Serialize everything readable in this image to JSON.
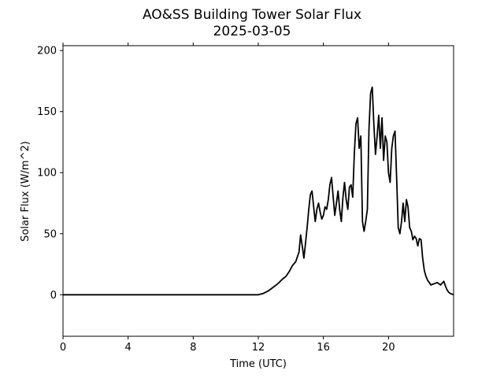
{
  "chart_data": {
    "type": "line",
    "title": "AO&SS Building Tower Solar Flux",
    "subtitle": "2025-03-05",
    "xlabel": "Time (UTC)",
    "ylabel": "Solar Flux (W/m^2)",
    "xlim": [
      0,
      24
    ],
    "ylim": [
      -34,
      204
    ],
    "x_ticks": [
      0,
      4,
      8,
      12,
      16,
      20
    ],
    "y_ticks": [
      0,
      50,
      100,
      150,
      200
    ],
    "grid": false,
    "series": [
      {
        "color": "#000000",
        "x": [
          0,
          1,
          2,
          3,
          4,
          5,
          6,
          7,
          8,
          9,
          10,
          11,
          12,
          12.3,
          12.6,
          12.9,
          13.2,
          13.5,
          13.7,
          13.9,
          14.1,
          14.3,
          14.5,
          14.6,
          14.7,
          14.8,
          14.9,
          15.0,
          15.1,
          15.2,
          15.3,
          15.4,
          15.5,
          15.6,
          15.7,
          15.8,
          15.9,
          16.0,
          16.1,
          16.2,
          16.3,
          16.4,
          16.5,
          16.6,
          16.7,
          16.8,
          16.9,
          17.0,
          17.1,
          17.2,
          17.3,
          17.4,
          17.5,
          17.6,
          17.7,
          17.8,
          17.9,
          18.0,
          18.1,
          18.2,
          18.3,
          18.4,
          18.5,
          18.6,
          18.7,
          18.8,
          18.9,
          19.0,
          19.1,
          19.2,
          19.3,
          19.4,
          19.5,
          19.6,
          19.7,
          19.8,
          19.9,
          20.0,
          20.1,
          20.2,
          20.3,
          20.4,
          20.5,
          20.6,
          20.7,
          20.8,
          20.9,
          21.0,
          21.1,
          21.2,
          21.3,
          21.4,
          21.5,
          21.6,
          21.7,
          21.8,
          21.9,
          22.0,
          22.1,
          22.2,
          22.3,
          22.4,
          22.5,
          22.6,
          22.8,
          23.0,
          23.2,
          23.4,
          23.5,
          23.6,
          23.7,
          23.8,
          24.0
        ],
        "values": [
          0,
          0,
          0,
          0,
          0,
          0,
          0,
          0,
          0,
          0,
          0,
          0,
          0,
          1,
          3,
          6,
          9,
          13,
          15,
          19,
          24,
          27,
          35,
          49,
          40,
          30,
          42,
          55,
          70,
          82,
          85,
          72,
          60,
          70,
          75,
          68,
          62,
          65,
          72,
          70,
          78,
          90,
          96,
          80,
          65,
          75,
          85,
          70,
          60,
          80,
          92,
          78,
          70,
          88,
          90,
          80,
          115,
          140,
          145,
          120,
          130,
          60,
          52,
          60,
          70,
          135,
          165,
          170,
          140,
          115,
          130,
          147,
          120,
          145,
          110,
          130,
          125,
          100,
          92,
          120,
          130,
          134,
          95,
          55,
          50,
          60,
          75,
          60,
          78,
          72,
          55,
          52,
          45,
          48,
          46,
          40,
          46,
          45,
          30,
          20,
          15,
          12,
          10,
          8,
          9,
          10,
          8,
          11,
          7,
          4,
          2,
          1,
          0
        ]
      }
    ]
  }
}
